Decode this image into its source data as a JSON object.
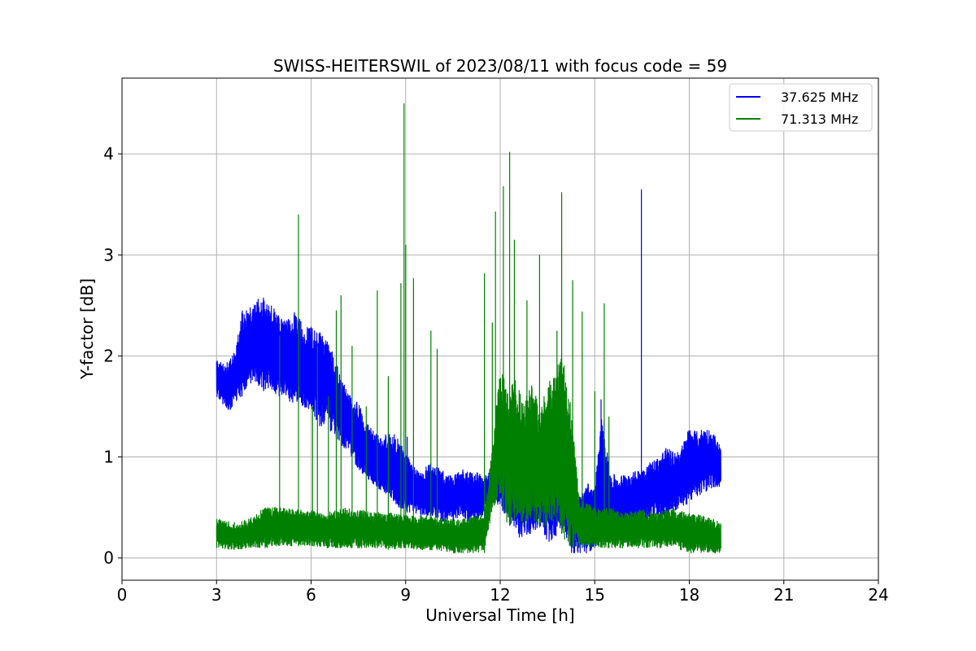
{
  "chart_data": {
    "type": "line",
    "title": "SWISS-HEITERSWIL of 2023/08/11 with focus code = 59",
    "xlabel": "Universal Time [h]",
    "ylabel": "Y-factor [dB]",
    "xlim": [
      0,
      24
    ],
    "ylim": [
      -0.22,
      4.75
    ],
    "xticks": [
      0,
      3,
      6,
      9,
      12,
      15,
      18,
      21,
      24
    ],
    "yticks": [
      0,
      1,
      2,
      3,
      4
    ],
    "grid": true,
    "legend_position": "top-right",
    "series": [
      {
        "name": "37.625 MHz",
        "color": "#0000ff",
        "x": [
          3.0,
          3.2,
          3.4,
          3.6,
          3.8,
          4.0,
          4.25,
          4.5,
          4.75,
          5.0,
          5.25,
          5.5,
          5.75,
          6.0,
          6.25,
          6.5,
          6.75,
          7.0,
          7.25,
          7.5,
          7.75,
          8.0,
          8.25,
          8.5,
          8.75,
          9.0,
          9.25,
          9.5,
          9.75,
          10.0,
          10.25,
          10.5,
          10.75,
          11.0,
          11.25,
          11.5,
          11.75,
          12.0,
          12.25,
          12.5,
          12.75,
          13.0,
          13.25,
          13.5,
          13.75,
          14.0,
          14.25,
          14.5,
          14.75,
          15.0,
          15.25,
          15.5,
          15.75,
          16.0,
          16.25,
          16.5,
          16.75,
          17.0,
          17.25,
          17.5,
          17.75,
          18.0,
          18.25,
          18.5,
          18.75,
          19.0
        ],
        "upper": [
          1.97,
          1.92,
          1.95,
          2.05,
          2.45,
          2.45,
          2.55,
          2.6,
          2.5,
          2.4,
          2.35,
          2.45,
          2.3,
          2.3,
          2.25,
          2.2,
          2.0,
          1.75,
          1.6,
          1.55,
          1.35,
          1.25,
          1.2,
          1.25,
          1.2,
          1.05,
          0.9,
          0.85,
          0.95,
          0.9,
          0.85,
          0.8,
          0.9,
          0.85,
          0.85,
          0.8,
          0.9,
          1.0,
          1.2,
          1.15,
          1.3,
          1.1,
          1.2,
          1.3,
          1.2,
          1.25,
          0.7,
          0.6,
          0.75,
          0.7,
          1.5,
          0.85,
          0.8,
          0.85,
          0.85,
          0.9,
          0.95,
          1.0,
          1.1,
          1.05,
          1.1,
          1.3,
          1.25,
          1.3,
          1.25,
          1.1
        ],
        "lower": [
          1.6,
          1.5,
          1.45,
          1.55,
          1.6,
          1.7,
          1.7,
          1.65,
          1.65,
          1.6,
          1.55,
          1.5,
          1.5,
          1.45,
          1.3,
          1.3,
          1.2,
          1.1,
          1.0,
          0.85,
          0.8,
          0.7,
          0.65,
          0.6,
          0.5,
          0.45,
          0.45,
          0.4,
          0.4,
          0.4,
          0.35,
          0.35,
          0.4,
          0.35,
          0.35,
          0.45,
          0.55,
          0.5,
          0.35,
          0.2,
          0.2,
          0.25,
          0.3,
          0.15,
          0.2,
          0.3,
          0.05,
          0.05,
          0.05,
          0.1,
          0.15,
          0.2,
          0.25,
          0.3,
          0.35,
          0.35,
          0.4,
          0.4,
          0.4,
          0.45,
          0.5,
          0.55,
          0.6,
          0.65,
          0.7,
          0.7
        ],
        "spikes": [
          [
            16.48,
            3.65
          ],
          [
            15.2,
            1.57
          ],
          [
            13.55,
            1.45
          ],
          [
            9.05,
            1.2
          ]
        ]
      },
      {
        "name": "71.313 MHz",
        "color": "#008000",
        "x": [
          3.0,
          3.5,
          4.0,
          4.5,
          5.0,
          5.5,
          6.0,
          6.5,
          7.0,
          7.5,
          8.0,
          8.5,
          9.0,
          9.5,
          10.0,
          10.5,
          11.0,
          11.5,
          11.75,
          12.0,
          12.25,
          12.5,
          12.75,
          13.0,
          13.25,
          13.5,
          13.75,
          14.0,
          14.25,
          14.5,
          15.0,
          15.5,
          16.0,
          16.5,
          17.0,
          17.5,
          18.0,
          18.5,
          19.0
        ],
        "upper": [
          0.4,
          0.35,
          0.38,
          0.5,
          0.5,
          0.48,
          0.48,
          0.45,
          0.5,
          0.48,
          0.45,
          0.45,
          0.42,
          0.42,
          0.4,
          0.38,
          0.4,
          0.45,
          1.1,
          1.9,
          1.7,
          1.8,
          1.5,
          1.8,
          1.5,
          1.7,
          1.9,
          2.0,
          1.5,
          0.6,
          0.5,
          0.5,
          0.45,
          0.48,
          0.45,
          0.5,
          0.45,
          0.42,
          0.35
        ],
        "lower": [
          0.1,
          0.08,
          0.1,
          0.1,
          0.12,
          0.12,
          0.12,
          0.1,
          0.1,
          0.1,
          0.1,
          0.08,
          0.1,
          0.08,
          0.08,
          0.05,
          0.05,
          0.05,
          0.5,
          0.6,
          0.3,
          0.4,
          0.3,
          0.4,
          0.3,
          0.3,
          0.4,
          0.2,
          0.1,
          0.1,
          0.1,
          0.1,
          0.1,
          0.1,
          0.1,
          0.1,
          0.05,
          0.05,
          0.05
        ],
        "spikes": [
          [
            5.0,
            2.2
          ],
          [
            5.6,
            3.4
          ],
          [
            6.05,
            1.5
          ],
          [
            6.2,
            2.1
          ],
          [
            6.55,
            1.6
          ],
          [
            6.8,
            2.45
          ],
          [
            6.95,
            2.6
          ],
          [
            7.3,
            2.1
          ],
          [
            7.75,
            1.5
          ],
          [
            8.1,
            2.65
          ],
          [
            8.45,
            1.8
          ],
          [
            8.85,
            2.72
          ],
          [
            8.95,
            4.5
          ],
          [
            9.0,
            3.1
          ],
          [
            9.25,
            2.77
          ],
          [
            9.8,
            2.25
          ],
          [
            10.0,
            2.07
          ],
          [
            11.5,
            2.82
          ],
          [
            11.75,
            2.33
          ],
          [
            11.85,
            3.43
          ],
          [
            12.1,
            3.68
          ],
          [
            12.3,
            4.02
          ],
          [
            12.45,
            3.15
          ],
          [
            12.85,
            2.55
          ],
          [
            13.25,
            3.0
          ],
          [
            13.8,
            2.25
          ],
          [
            13.95,
            3.62
          ],
          [
            14.2,
            1.2
          ],
          [
            14.3,
            2.75
          ],
          [
            14.6,
            2.44
          ],
          [
            15.0,
            1.65
          ],
          [
            15.3,
            2.52
          ],
          [
            15.45,
            1.4
          ]
        ]
      }
    ]
  }
}
